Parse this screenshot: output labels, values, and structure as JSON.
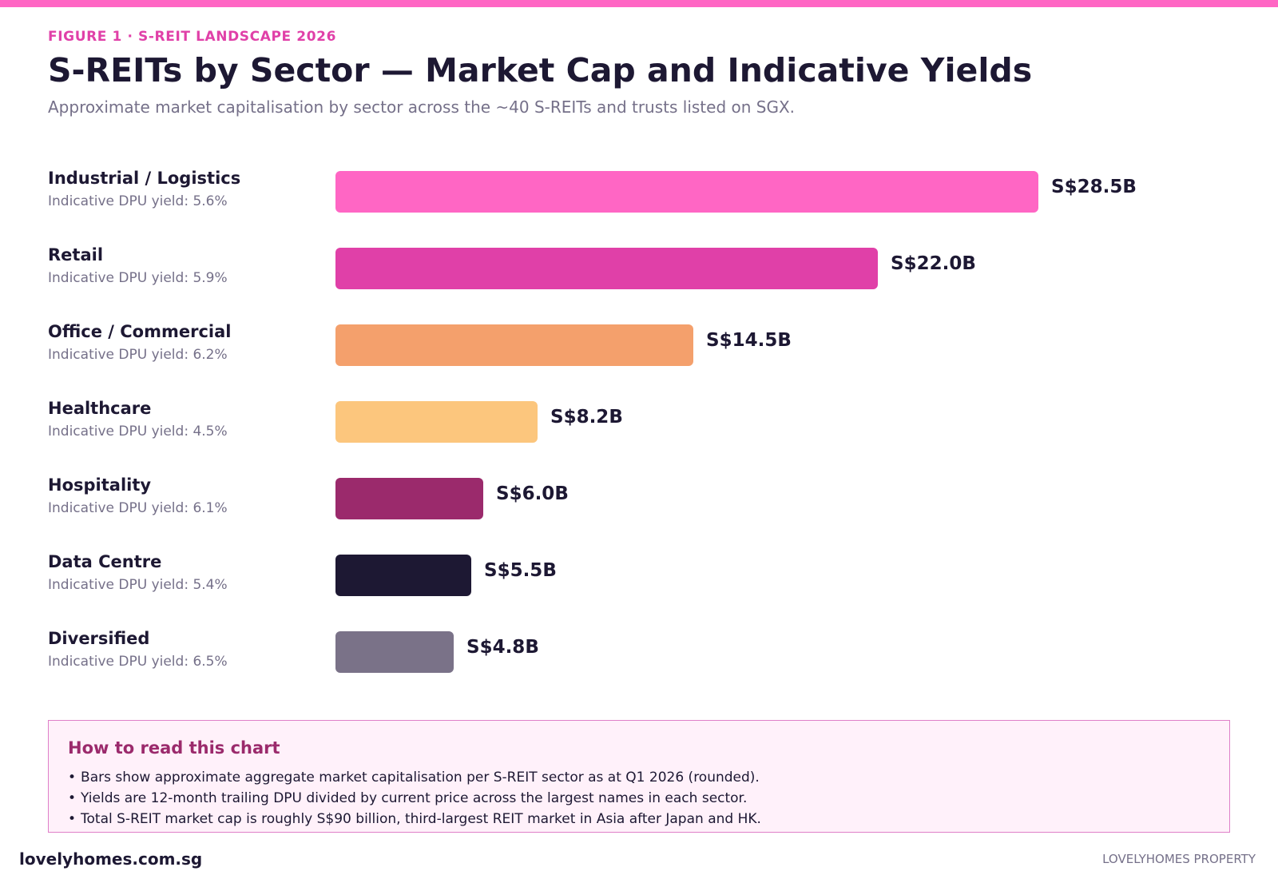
{
  "header": {
    "eyebrow": "FIGURE 1 · S-REIT LANDSCAPE 2026",
    "title": "S-REITs by Sector — Market Cap and Indicative Yields",
    "subtitle": "Approximate market capitalisation by sector across the ~40 S-REITs and trusts listed on SGX."
  },
  "chart_data": {
    "type": "bar",
    "orientation": "horizontal",
    "categories": [
      "Industrial / Logistics",
      "Retail",
      "Office / Commercial",
      "Healthcare",
      "Hospitality",
      "Data Centre",
      "Diversified"
    ],
    "values": [
      28.5,
      22.0,
      14.5,
      8.2,
      6.0,
      5.5,
      4.8
    ],
    "value_labels": [
      "S$28.5B",
      "S$22.0B",
      "S$14.5B",
      "S$8.2B",
      "S$6.0B",
      "S$5.5B",
      "S$4.8B"
    ],
    "yield_labels": [
      "Indicative DPU yield: 5.6%",
      "Indicative DPU yield: 5.9%",
      "Indicative DPU yield: 6.2%",
      "Indicative DPU yield: 4.5%",
      "Indicative DPU yield: 6.1%",
      "Indicative DPU yield: 5.4%",
      "Indicative DPU yield: 6.5%"
    ],
    "yields": [
      5.6,
      5.9,
      6.2,
      4.5,
      6.1,
      5.4,
      6.5
    ],
    "colors": [
      "#ff66c4",
      "#e040a8",
      "#f4a06c",
      "#fcc67d",
      "#9b2a6c",
      "#1d1833",
      "#7a7288"
    ],
    "xlim": [
      0,
      28.5
    ],
    "grid": false,
    "legend": "none"
  },
  "notes": {
    "heading": "How to read this chart",
    "bullet": "•",
    "items": [
      "Bars show approximate aggregate market capitalisation per S-REIT sector as at Q1 2026 (rounded).",
      "Yields are 12-month trailing DPU divided by current price across the largest names in each sector.",
      "Total S-REIT market cap is roughly S$90 billion, third-largest REIT market in Asia after Japan and HK."
    ]
  },
  "footer": {
    "site": "lovelyhomes.com.sg",
    "brand": "LOVELYHOMES PROPERTY"
  }
}
